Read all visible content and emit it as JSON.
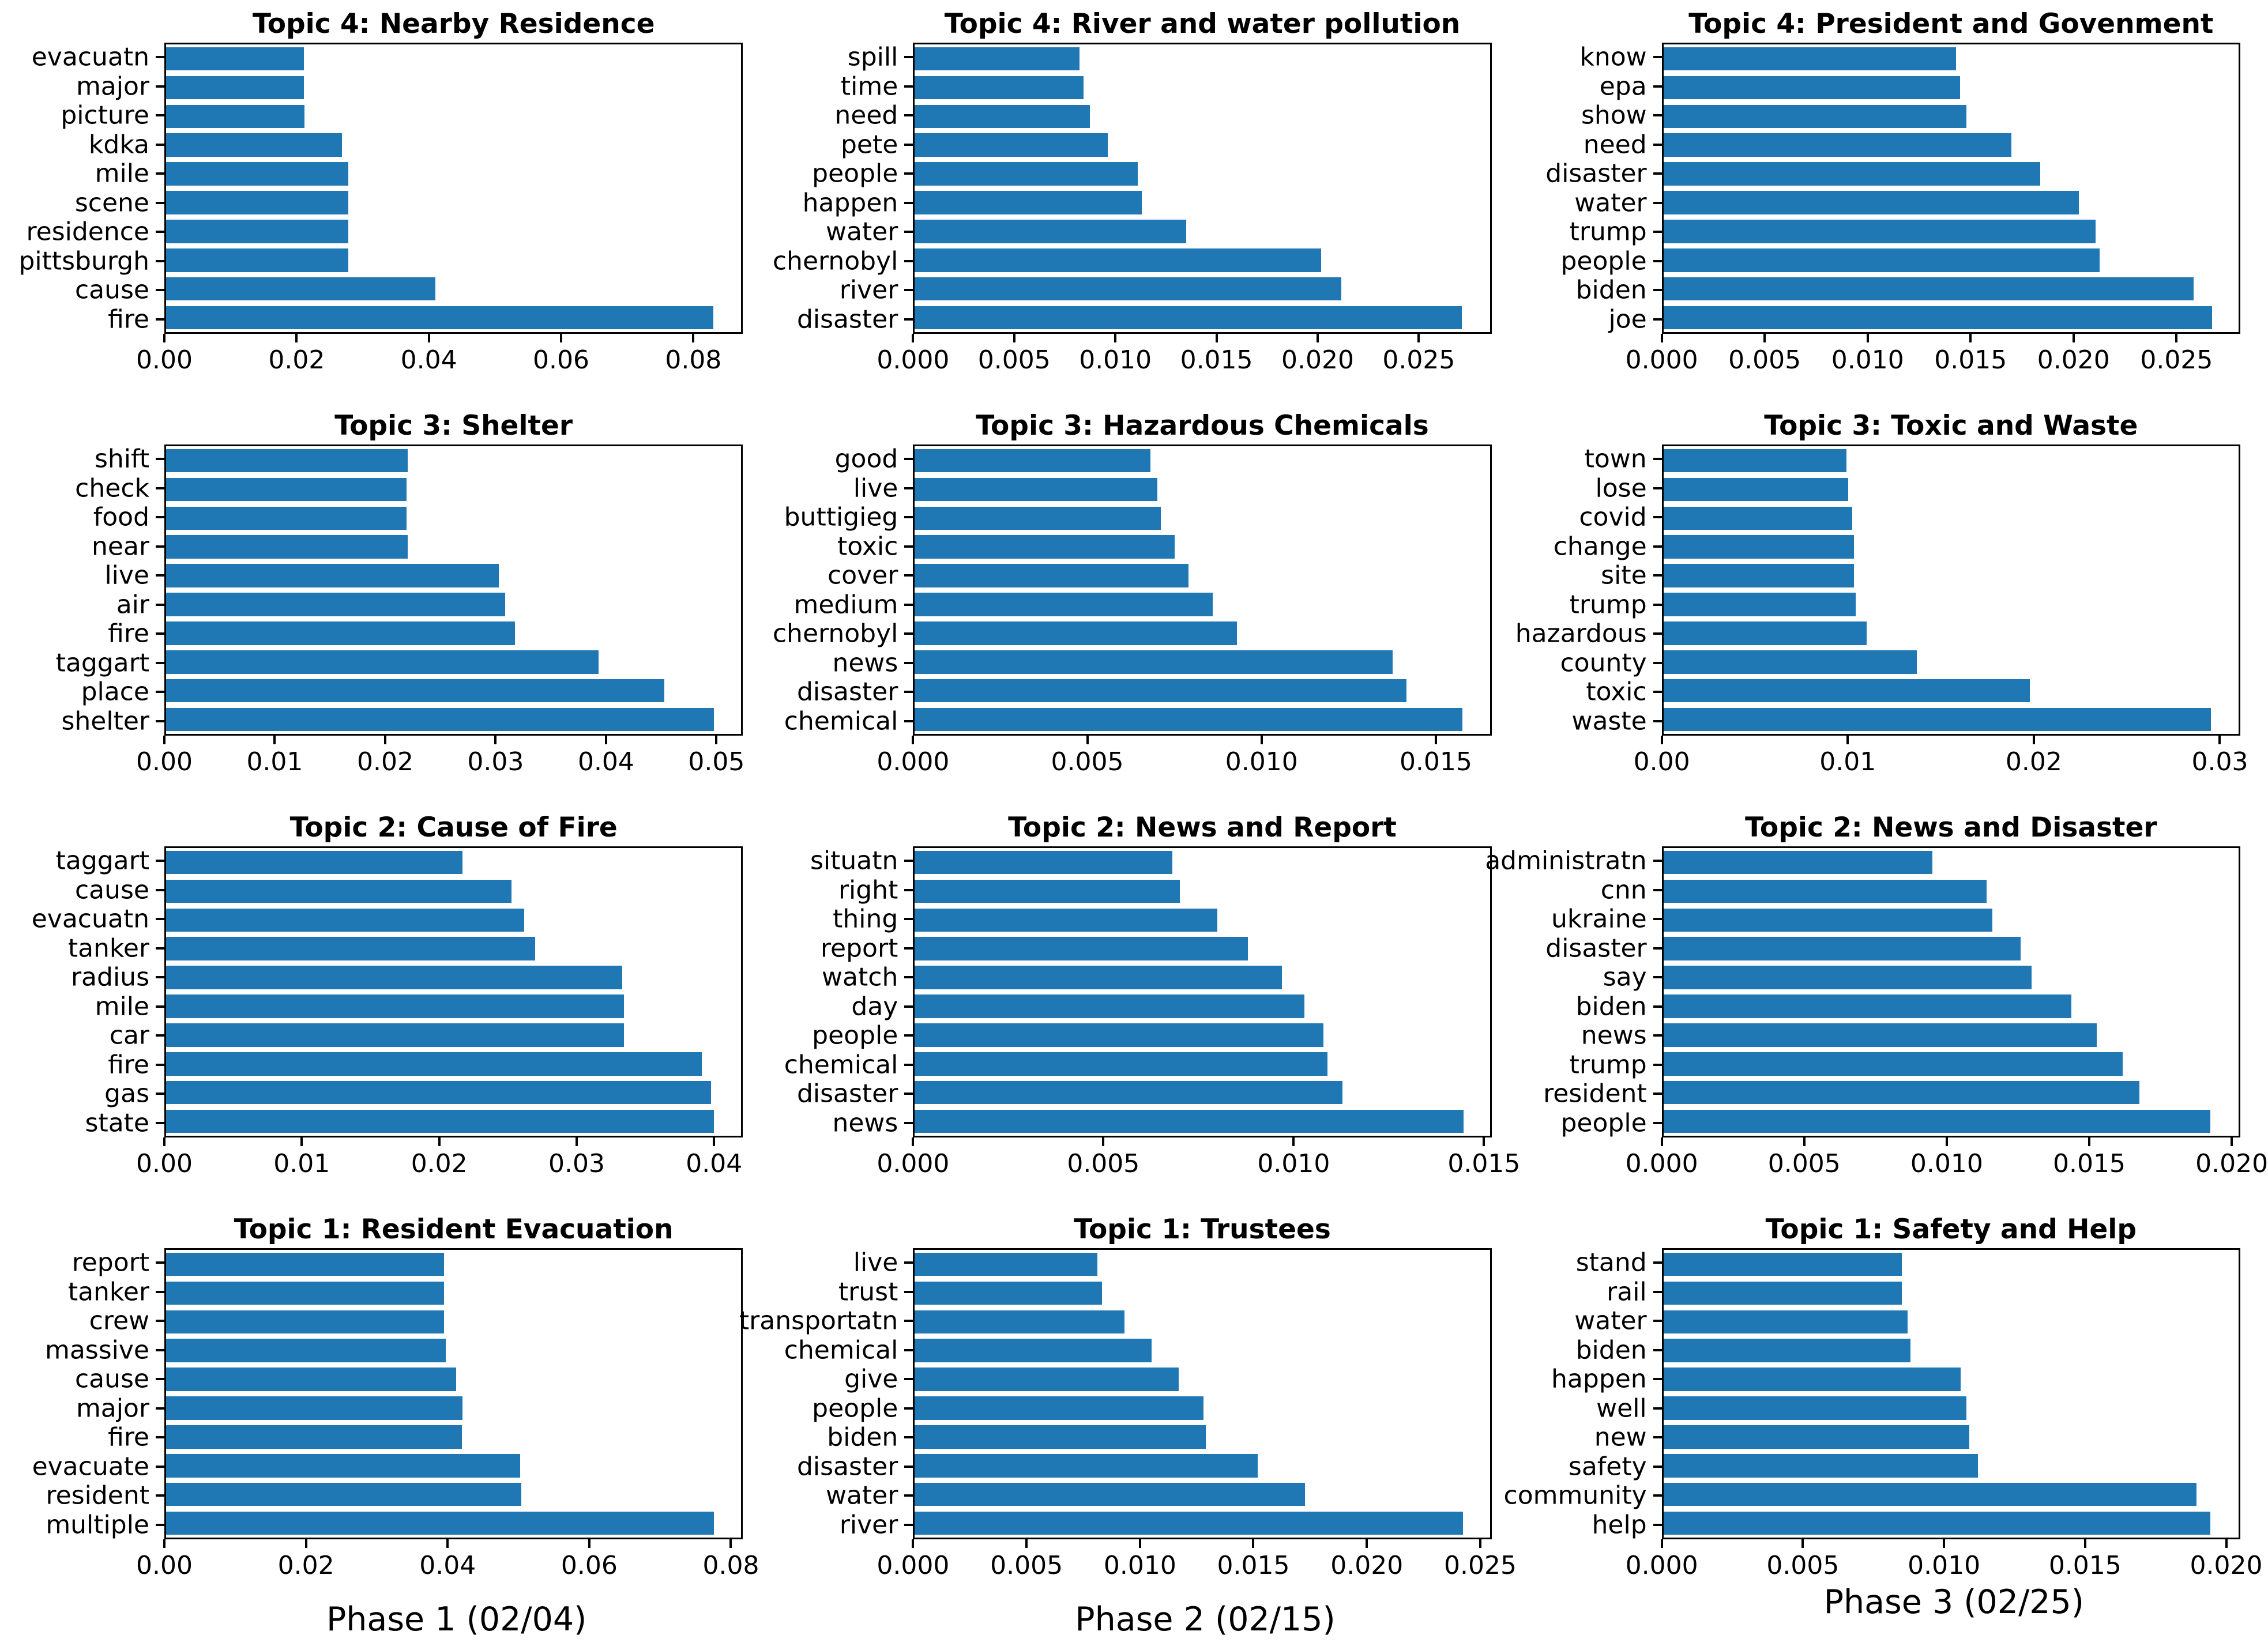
{
  "figure": {
    "background_color": "#ffffff",
    "bar_color": "#1f77b4",
    "text_color": "#000000",
    "grid": "off",
    "legend": "none"
  },
  "chart_data": [
    {
      "type": "bar",
      "orientation": "horizontal",
      "phase_column": 1,
      "title": "Topic 4: Nearby Residence",
      "categories": [
        "evacuatn",
        "major",
        "picture",
        "kdka",
        "mile",
        "scene",
        "residence",
        "pittsburgh",
        "cause",
        "fire"
      ],
      "values": [
        0.021,
        0.021,
        0.0211,
        0.0268,
        0.0277,
        0.0277,
        0.0277,
        0.0277,
        0.041,
        0.0833
      ],
      "xticks": {
        "labels": [
          "0.00",
          "0.02",
          "0.04",
          "0.06",
          "0.08"
        ],
        "values": [
          0,
          0.02,
          0.04,
          0.06,
          0.08
        ]
      },
      "xlim": [
        0,
        0.0875
      ]
    },
    {
      "type": "bar",
      "orientation": "horizontal",
      "phase_column": 2,
      "title": "Topic 4: River and water pollution",
      "categories": [
        "spill",
        "time",
        "need",
        "pete",
        "people",
        "happen",
        "water",
        "chernobyl",
        "river",
        "disaster"
      ],
      "values": [
        0.0082,
        0.0084,
        0.0087,
        0.0096,
        0.0111,
        0.0113,
        0.0135,
        0.0202,
        0.0212,
        0.0272
      ],
      "xticks": {
        "labels": [
          "0.000",
          "0.005",
          "0.010",
          "0.015",
          "0.020",
          "0.025"
        ],
        "values": [
          0,
          0.005,
          0.01,
          0.015,
          0.02,
          0.025
        ]
      },
      "xlim": [
        0,
        0.0286
      ]
    },
    {
      "type": "bar",
      "orientation": "horizontal",
      "phase_column": 3,
      "title": "Topic 4: President and Govenment",
      "categories": [
        "know",
        "epa",
        "show",
        "need",
        "disaster",
        "water",
        "trump",
        "people",
        "biden",
        "joe"
      ],
      "values": [
        0.0143,
        0.0145,
        0.0148,
        0.017,
        0.0184,
        0.0203,
        0.0211,
        0.0213,
        0.0259,
        0.0268
      ],
      "xticks": {
        "labels": [
          "0.000",
          "0.005",
          "0.010",
          "0.015",
          "0.020",
          "0.025"
        ],
        "values": [
          0,
          0.005,
          0.01,
          0.015,
          0.02,
          0.025
        ]
      },
      "xlim": [
        0,
        0.0281
      ]
    },
    {
      "type": "bar",
      "orientation": "horizontal",
      "phase_column": 1,
      "title": "Topic 3: Shelter",
      "categories": [
        "shift",
        "check",
        "food",
        "near",
        "live",
        "air",
        "fire",
        "taggart",
        "place",
        "shelter"
      ],
      "values": [
        0.022,
        0.0219,
        0.0219,
        0.022,
        0.0303,
        0.0309,
        0.0318,
        0.0394,
        0.0454,
        0.0499
      ],
      "xticks": {
        "labels": [
          "0.00",
          "0.01",
          "0.02",
          "0.03",
          "0.04",
          "0.05"
        ],
        "values": [
          0,
          0.01,
          0.02,
          0.03,
          0.04,
          0.05
        ]
      },
      "xlim": [
        0,
        0.0524
      ]
    },
    {
      "type": "bar",
      "orientation": "horizontal",
      "phase_column": 2,
      "title": "Topic 3: Hazardous Chemicals",
      "categories": [
        "good",
        "live",
        "buttigieg",
        "toxic",
        "cover",
        "medium",
        "chernobyl",
        "news",
        "disaster",
        "chemical"
      ],
      "values": [
        0.0068,
        0.007,
        0.0071,
        0.0075,
        0.0079,
        0.0086,
        0.0093,
        0.0138,
        0.0142,
        0.0158
      ],
      "xticks": {
        "labels": [
          "0.000",
          "0.005",
          "0.010",
          "0.015"
        ],
        "values": [
          0,
          0.005,
          0.01,
          0.015
        ]
      },
      "xlim": [
        0,
        0.0166
      ]
    },
    {
      "type": "bar",
      "orientation": "horizontal",
      "phase_column": 3,
      "title": "Topic 3: Toxic and Waste",
      "categories": [
        "town",
        "lose",
        "covid",
        "change",
        "site",
        "trump",
        "hazardous",
        "county",
        "toxic",
        "waste"
      ],
      "values": [
        0.0099,
        0.01,
        0.0102,
        0.0103,
        0.0103,
        0.0104,
        0.011,
        0.0137,
        0.0198,
        0.0296
      ],
      "xticks": {
        "labels": [
          "0.00",
          "0.01",
          "0.02",
          "0.03"
        ],
        "values": [
          0,
          0.01,
          0.02,
          0.03
        ]
      },
      "xlim": [
        0,
        0.0311
      ]
    },
    {
      "type": "bar",
      "orientation": "horizontal",
      "phase_column": 1,
      "title": "Topic 2: Cause of Fire",
      "categories": [
        "taggart",
        "cause",
        "evacuatn",
        "tanker",
        "radius",
        "mile",
        "car",
        "fire",
        "gas",
        "state"
      ],
      "values": [
        0.0217,
        0.0253,
        0.0262,
        0.027,
        0.0334,
        0.0335,
        0.0335,
        0.0392,
        0.0399,
        0.0401
      ],
      "xticks": {
        "labels": [
          "0.00",
          "0.01",
          "0.02",
          "0.03",
          "0.04"
        ],
        "values": [
          0,
          0.01,
          0.02,
          0.03,
          0.04
        ]
      },
      "xlim": [
        0,
        0.0421
      ]
    },
    {
      "type": "bar",
      "orientation": "horizontal",
      "phase_column": 2,
      "title": "Topic 2: News and Report",
      "categories": [
        "situatn",
        "right",
        "thing",
        "report",
        "watch",
        "day",
        "people",
        "chemical",
        "disaster",
        "news"
      ],
      "values": [
        0.0068,
        0.007,
        0.008,
        0.0088,
        0.0097,
        0.0103,
        0.0108,
        0.0109,
        0.0113,
        0.0145
      ],
      "xticks": {
        "labels": [
          "0.000",
          "0.005",
          "0.010",
          "0.015"
        ],
        "values": [
          0,
          0.005,
          0.01,
          0.015
        ]
      },
      "xlim": [
        0,
        0.0152
      ]
    },
    {
      "type": "bar",
      "orientation": "horizontal",
      "phase_column": 3,
      "title": "Topic 2: News and Disaster",
      "categories": [
        "administratn",
        "cnn",
        "ukraine",
        "disaster",
        "say",
        "biden",
        "news",
        "trump",
        "resident",
        "people"
      ],
      "values": [
        0.0095,
        0.0114,
        0.0116,
        0.0126,
        0.013,
        0.0144,
        0.0153,
        0.0162,
        0.0168,
        0.0193
      ],
      "xticks": {
        "labels": [
          "0.000",
          "0.005",
          "0.010",
          "0.015",
          "0.020"
        ],
        "values": [
          0,
          0.005,
          0.01,
          0.015,
          0.02
        ]
      },
      "xlim": [
        0,
        0.0203
      ]
    },
    {
      "type": "bar",
      "orientation": "horizontal",
      "phase_column": 1,
      "title": "Topic 1: Resident Evacuation",
      "xlabel": "Phase 1 (02/04)",
      "categories": [
        "report",
        "tanker",
        "crew",
        "massive",
        "cause",
        "major",
        "fire",
        "evacuate",
        "resident",
        "multiple"
      ],
      "values": [
        0.0395,
        0.0395,
        0.0395,
        0.0397,
        0.0412,
        0.0421,
        0.042,
        0.0503,
        0.0505,
        0.0778
      ],
      "xticks": {
        "labels": [
          "0.00",
          "0.02",
          "0.04",
          "0.06",
          "0.08"
        ],
        "values": [
          0,
          0.02,
          0.04,
          0.06,
          0.08
        ]
      },
      "xlim": [
        0,
        0.0817
      ]
    },
    {
      "type": "bar",
      "orientation": "horizontal",
      "phase_column": 2,
      "title": "Topic 1: Trustees",
      "xlabel": "Phase 2 (02/15)",
      "categories": [
        "live",
        "trust",
        "transportatn",
        "chemical",
        "give",
        "people",
        "biden",
        "disaster",
        "water",
        "river"
      ],
      "values": [
        0.0081,
        0.0083,
        0.0093,
        0.0105,
        0.0117,
        0.0128,
        0.0129,
        0.0152,
        0.0173,
        0.0243
      ],
      "xticks": {
        "labels": [
          "0.000",
          "0.005",
          "0.010",
          "0.015",
          "0.020",
          "0.025"
        ],
        "values": [
          0,
          0.005,
          0.01,
          0.015,
          0.02,
          0.025
        ]
      },
      "xlim": [
        0,
        0.0255
      ]
    },
    {
      "type": "bar",
      "orientation": "horizontal",
      "phase_column": 3,
      "title": "Topic 1: Safety and Help",
      "xlabel": "Phase 3 (02/25)",
      "categories": [
        "stand",
        "rail",
        "water",
        "biden",
        "happen",
        "well",
        "new",
        "safety",
        "community",
        "help"
      ],
      "values": [
        0.0085,
        0.0085,
        0.0087,
        0.0088,
        0.0106,
        0.0108,
        0.0109,
        0.0112,
        0.019,
        0.0195
      ],
      "xticks": {
        "labels": [
          "0.000",
          "0.005",
          "0.010",
          "0.015",
          "0.020"
        ],
        "values": [
          0,
          0.005,
          0.01,
          0.015,
          0.02
        ]
      },
      "xlim": [
        0,
        0.0205
      ]
    }
  ],
  "footer": {
    "phase_labels": [
      "Phase 1 (02/04)",
      "Phase 2 (02/15)",
      "Phase 3 (02/25)"
    ]
  }
}
